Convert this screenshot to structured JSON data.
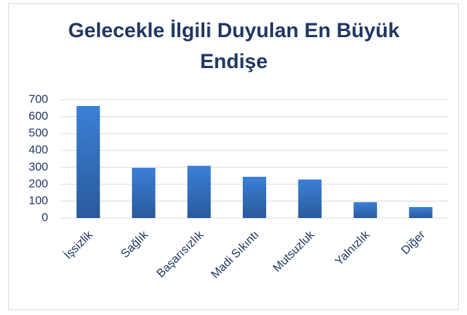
{
  "chart_data": {
    "type": "bar",
    "title": "Gelecekle İlgili Duyulan En Büyük Endişe",
    "categories": [
      "İşsizlik",
      "Sağlık",
      "Başarısızlık",
      "Madi Sıkıntı",
      "Mutsuzluk",
      "Yalnızlık",
      "Diğer"
    ],
    "values": [
      663,
      297,
      309,
      244,
      228,
      94,
      65
    ],
    "color": "#3b80d6",
    "ylim": [
      0,
      700
    ],
    "yticks": [
      0,
      100,
      200,
      300,
      400,
      500,
      600,
      700
    ],
    "grid": true
  }
}
